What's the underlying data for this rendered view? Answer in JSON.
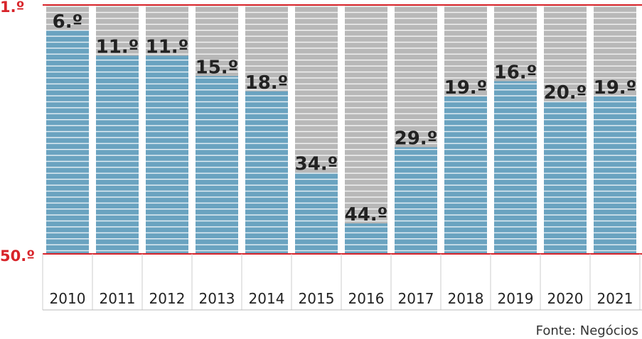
{
  "chart_data": {
    "type": "bar",
    "categories": [
      "2010",
      "2011",
      "2012",
      "2013",
      "2014",
      "2015",
      "2016",
      "2017",
      "2018",
      "2019",
      "2020",
      "2021"
    ],
    "values": [
      6,
      11,
      11,
      15,
      18,
      34,
      44,
      29,
      19,
      16,
      20,
      19
    ],
    "value_labels": [
      "6.º",
      "11.º",
      "11.º",
      "15.º",
      "18.º",
      "34.º",
      "44.º",
      "29.º",
      "19.º",
      "16.º",
      "20.º",
      "19.º"
    ],
    "y_ticks": [
      "1.º",
      "50.º"
    ],
    "ylim": [
      1,
      50
    ],
    "y_inverted": true,
    "grid": false,
    "source": "Fonte: Negócios",
    "colors": {
      "bar": "#6aa3c0",
      "background_bar": "#b8b8b8",
      "stripe": "#ffffff",
      "axis_red": "#d8242a",
      "text": "#222222"
    }
  }
}
